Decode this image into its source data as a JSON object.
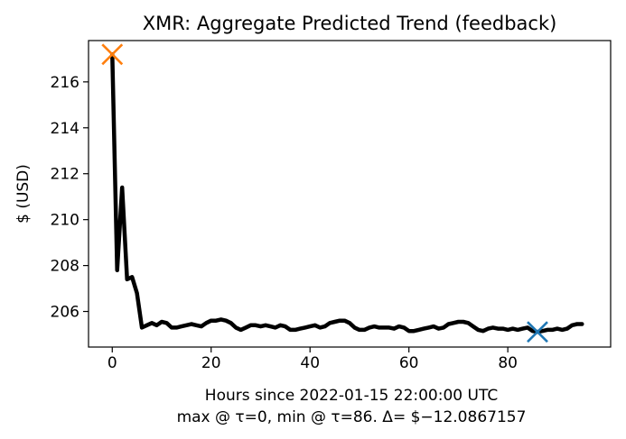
{
  "chart_data": {
    "type": "line",
    "title": "XMR: Aggregate Predicted Trend (feedback)",
    "xlabel": "Hours since 2022-01-15 22:00:00 UTC",
    "xlabel_note": "max @ τ=0, min @ τ=86. Δ= $−12.0867157",
    "ylabel": "$ (USD)",
    "xlim": [
      -4.8,
      100.8
    ],
    "ylim": [
      204.45,
      217.8
    ],
    "xticks": [
      0,
      20,
      40,
      60,
      80
    ],
    "yticks": [
      206,
      208,
      210,
      212,
      214,
      216
    ],
    "grid": false,
    "series": [
      {
        "color": "#000000",
        "x": [
          0,
          1,
          2,
          3,
          4,
          5,
          6,
          7,
          8,
          9,
          10,
          11,
          12,
          13,
          14,
          15,
          16,
          17,
          18,
          19,
          20,
          21,
          22,
          23,
          24,
          25,
          26,
          27,
          28,
          29,
          30,
          31,
          32,
          33,
          34,
          35,
          36,
          37,
          38,
          39,
          40,
          41,
          42,
          43,
          44,
          45,
          46,
          47,
          48,
          49,
          50,
          51,
          52,
          53,
          54,
          55,
          56,
          57,
          58,
          59,
          60,
          61,
          62,
          63,
          64,
          65,
          66,
          67,
          68,
          69,
          70,
          71,
          72,
          73,
          74,
          75,
          76,
          77,
          78,
          79,
          80,
          81,
          82,
          83,
          84,
          85,
          86,
          87,
          88,
          89,
          90,
          91,
          92,
          93,
          94,
          95
        ],
        "values": [
          217.2,
          207.8,
          211.4,
          207.4,
          207.5,
          206.8,
          205.3,
          205.4,
          205.5,
          205.4,
          205.55,
          205.5,
          205.3,
          205.3,
          205.35,
          205.4,
          205.45,
          205.4,
          205.35,
          205.5,
          205.6,
          205.6,
          205.65,
          205.6,
          205.5,
          205.3,
          205.2,
          205.3,
          205.4,
          205.4,
          205.35,
          205.4,
          205.35,
          205.3,
          205.4,
          205.35,
          205.2,
          205.2,
          205.25,
          205.3,
          205.35,
          205.4,
          205.3,
          205.35,
          205.5,
          205.55,
          205.6,
          205.6,
          205.5,
          205.3,
          205.2,
          205.2,
          205.3,
          205.35,
          205.3,
          205.3,
          205.3,
          205.25,
          205.35,
          205.3,
          205.15,
          205.15,
          205.2,
          205.25,
          205.3,
          205.35,
          205.25,
          205.3,
          205.45,
          205.5,
          205.55,
          205.55,
          205.5,
          205.35,
          205.2,
          205.15,
          205.25,
          205.3,
          205.25,
          205.25,
          205.2,
          205.25,
          205.2,
          205.25,
          205.3,
          205.15,
          205.11,
          205.15,
          205.2,
          205.2,
          205.25,
          205.2,
          205.25,
          205.4,
          205.45,
          205.45
        ]
      }
    ],
    "markers": [
      {
        "label": "max",
        "x": 0,
        "y": 217.2,
        "color": "#ff7f0e",
        "shape": "x"
      },
      {
        "label": "min",
        "x": 86,
        "y": 205.11,
        "color": "#1f77b4",
        "shape": "x"
      }
    ]
  }
}
